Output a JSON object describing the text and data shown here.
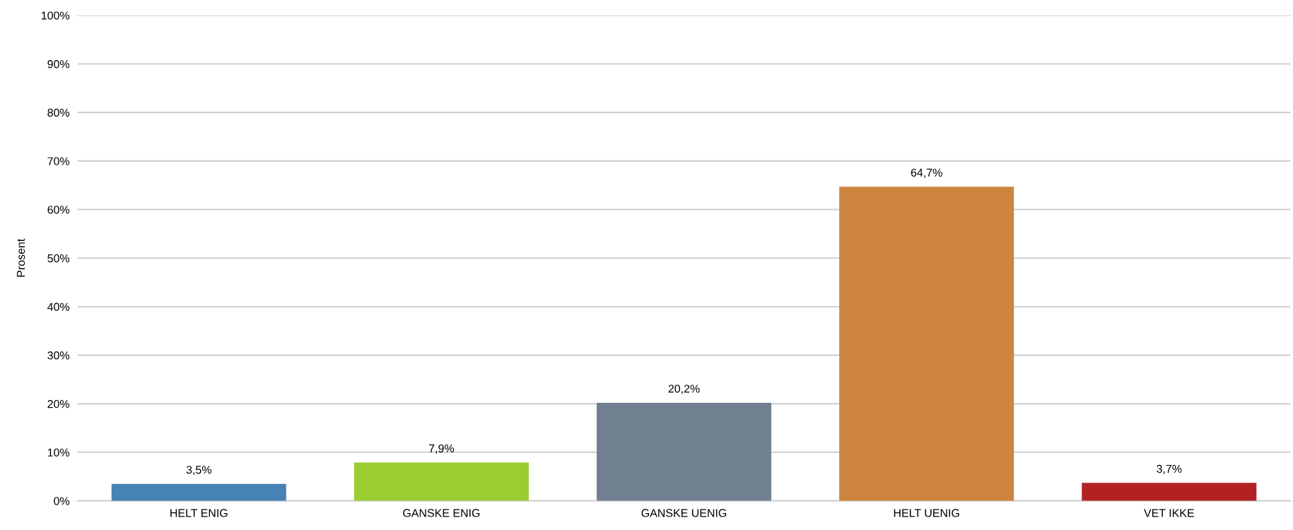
{
  "chart_data": {
    "type": "bar",
    "ylabel": "Prosent",
    "categories": [
      "HELT ENIG",
      "GANSKE ENIG",
      "GANSKE UENIG",
      "HELT UENIG",
      "VET IKKE"
    ],
    "values": [
      3.5,
      7.9,
      20.2,
      64.7,
      3.7
    ],
    "colors": [
      "#4682b4",
      "#9acd32",
      "#708090",
      "#cd853f",
      "#b22222"
    ],
    "value_labels": [
      "3,5%",
      "7,9%",
      "20,2%",
      "64,7%",
      "3,7%"
    ],
    "ylim": [
      0,
      100
    ],
    "yticks": [
      {
        "value": 0,
        "label": "0%"
      },
      {
        "value": 10,
        "label": "10%"
      },
      {
        "value": 20,
        "label": "20%"
      },
      {
        "value": 30,
        "label": "30%"
      },
      {
        "value": 40,
        "label": "40%"
      },
      {
        "value": 50,
        "label": "50%"
      },
      {
        "value": 60,
        "label": "60%"
      },
      {
        "value": 70,
        "label": "70%"
      },
      {
        "value": 80,
        "label": "80%"
      },
      {
        "value": 90,
        "label": "90%"
      },
      {
        "value": 100,
        "label": "100%"
      }
    ],
    "grid": "y",
    "legend": false
  }
}
